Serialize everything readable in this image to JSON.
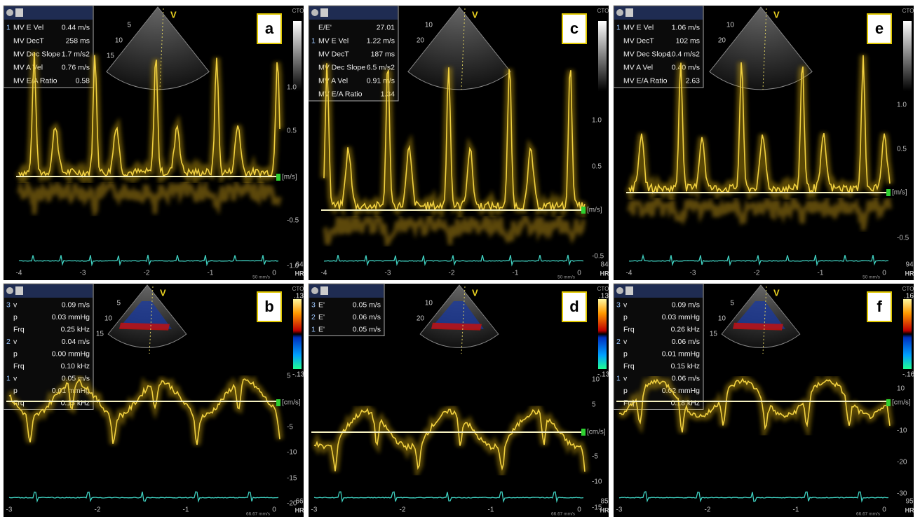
{
  "panels": [
    {
      "letter": "a",
      "cto": "CTO",
      "marker": "V",
      "depth_labels": [
        "5",
        "10",
        "15"
      ],
      "measurements": [
        {
          "num": "1",
          "label": "MV E Vel",
          "value": "0.44 m/s"
        },
        {
          "label": "MV DecT",
          "value": "258 ms"
        },
        {
          "label": "MV Dec Slope",
          "value": "1.7 m/s2"
        },
        {
          "label": "MV A Vel",
          "value": "0.76 m/s"
        },
        {
          "label": "MV E/A Ratio",
          "value": "0.58"
        }
      ],
      "scale_labels": [
        "1.0",
        "0.5",
        "[m/s]",
        "-0.5",
        "-1.0"
      ],
      "x_labels": [
        "-4",
        "-3",
        "-2",
        "-1",
        "0"
      ],
      "hr": "64",
      "hr_label": "HR",
      "speed": "50 mm/s"
    },
    {
      "letter": "c",
      "cto": "CTO",
      "marker": "V",
      "depth_labels": [
        "10",
        "20"
      ],
      "measurements": [
        {
          "label": "E/E'",
          "value": "27.01"
        },
        {
          "num": "1",
          "label": "MV E Vel",
          "value": "1.22 m/s"
        },
        {
          "label": "MV DecT",
          "value": "187 ms"
        },
        {
          "label": "MV Dec Slope",
          "value": "6.5 m/s2"
        },
        {
          "label": "MV A Vel",
          "value": "0.91 m/s"
        },
        {
          "label": "MV E/A Ratio",
          "value": "1.34"
        }
      ],
      "scale_labels": [
        "1.0",
        "0.5",
        "[m/s]",
        "-0.5"
      ],
      "x_labels": [
        "-4",
        "-3",
        "-2",
        "-1",
        "0"
      ],
      "hr": "84",
      "hr_label": "HR",
      "speed": "50 mm/s"
    },
    {
      "letter": "e",
      "cto": "CTO",
      "marker": "V",
      "depth_labels": [
        "10",
        "20"
      ],
      "measurements": [
        {
          "num": "1",
          "label": "MV E Vel",
          "value": "1.06 m/s"
        },
        {
          "label": "MV DecT",
          "value": "102 ms"
        },
        {
          "label": "MV Dec Slope",
          "value": "10.4 m/s2"
        },
        {
          "label": "MV A Vel",
          "value": "0.40 m/s"
        },
        {
          "label": "MV E/A Ratio",
          "value": "2.63"
        }
      ],
      "scale_labels": [
        "1.0",
        "0.5",
        "[m/s]",
        "-0.5"
      ],
      "x_labels": [
        "-4",
        "-3",
        "-2",
        "-1",
        "0"
      ],
      "hr": "94",
      "hr_label": "HR",
      "speed": "50 mm/s"
    },
    {
      "letter": "b",
      "cto": "CTO",
      "marker": "V",
      "depth_labels": [
        "5",
        "10",
        "15"
      ],
      "color_top": ".13",
      "color_bottom": "-.13",
      "measurements": [
        {
          "num": "3",
          "label": "v",
          "value": "0.09 m/s"
        },
        {
          "label": "p",
          "value": "0.03 mmHg"
        },
        {
          "label": "Frq",
          "value": "0.25 kHz"
        },
        {
          "num": "2",
          "label": "v",
          "value": "0.04 m/s"
        },
        {
          "label": "p",
          "value": "0.00 mmHg"
        },
        {
          "label": "Frq",
          "value": "0.10 kHz"
        },
        {
          "num": "1",
          "label": "v",
          "value": "0.05 m/s"
        },
        {
          "label": "p",
          "value": "0.01 mmHg"
        },
        {
          "label": "Frq",
          "value": "0.15 kHz"
        }
      ],
      "scale_labels": [
        "5",
        "[cm/s]",
        "-5",
        "-10",
        "-15",
        "-20"
      ],
      "x_labels": [
        "-3",
        "-2",
        "-1",
        "0"
      ],
      "hr": "66",
      "hr_label": "HR",
      "speed": "66.67 mm/s"
    },
    {
      "letter": "d",
      "cto": "CTO",
      "marker": "V",
      "depth_labels": [
        "10",
        "20"
      ],
      "color_top": ".13",
      "color_bottom": "-.13",
      "measurements": [
        {
          "num": "3",
          "label": "E'",
          "value": "0.05 m/s"
        },
        {
          "num": "2",
          "label": "E'",
          "value": "0.06 m/s"
        },
        {
          "num": "1",
          "label": "E'",
          "value": "0.05 m/s"
        }
      ],
      "scale_labels": [
        "10",
        "5",
        "[cm/s]",
        "-5",
        "-10",
        "-15"
      ],
      "x_labels": [
        "-3",
        "-2",
        "-1",
        "0"
      ],
      "hr": "85",
      "hr_label": "HR",
      "speed": "66.67 mm/s"
    },
    {
      "letter": "f",
      "cto": "CTO",
      "marker": "V",
      "depth_labels": [
        "5",
        "10",
        "15"
      ],
      "color_top": ".16",
      "color_bottom": "-.16",
      "measurements": [
        {
          "num": "3",
          "label": "v",
          "value": "0.09 m/s"
        },
        {
          "label": "p",
          "value": "0.03 mmHg"
        },
        {
          "label": "Frq",
          "value": "0.26 kHz"
        },
        {
          "num": "2",
          "label": "v",
          "value": "0.06 m/s"
        },
        {
          "label": "p",
          "value": "0.01 mmHg"
        },
        {
          "label": "Frq",
          "value": "0.15 kHz"
        },
        {
          "num": "1",
          "label": "v",
          "value": "0.06 m/s"
        },
        {
          "label": "p",
          "value": "0.02 mmHg"
        },
        {
          "label": "Frq",
          "value": "0.18 kHz"
        }
      ],
      "scale_labels": [
        "10",
        "[cm/s]",
        "-10",
        "-20",
        "-30"
      ],
      "x_labels": [
        "-3",
        "-2",
        "-1",
        "0"
      ],
      "hr": "95",
      "hr_label": "HR",
      "speed": "66.67 mm/s"
    }
  ]
}
